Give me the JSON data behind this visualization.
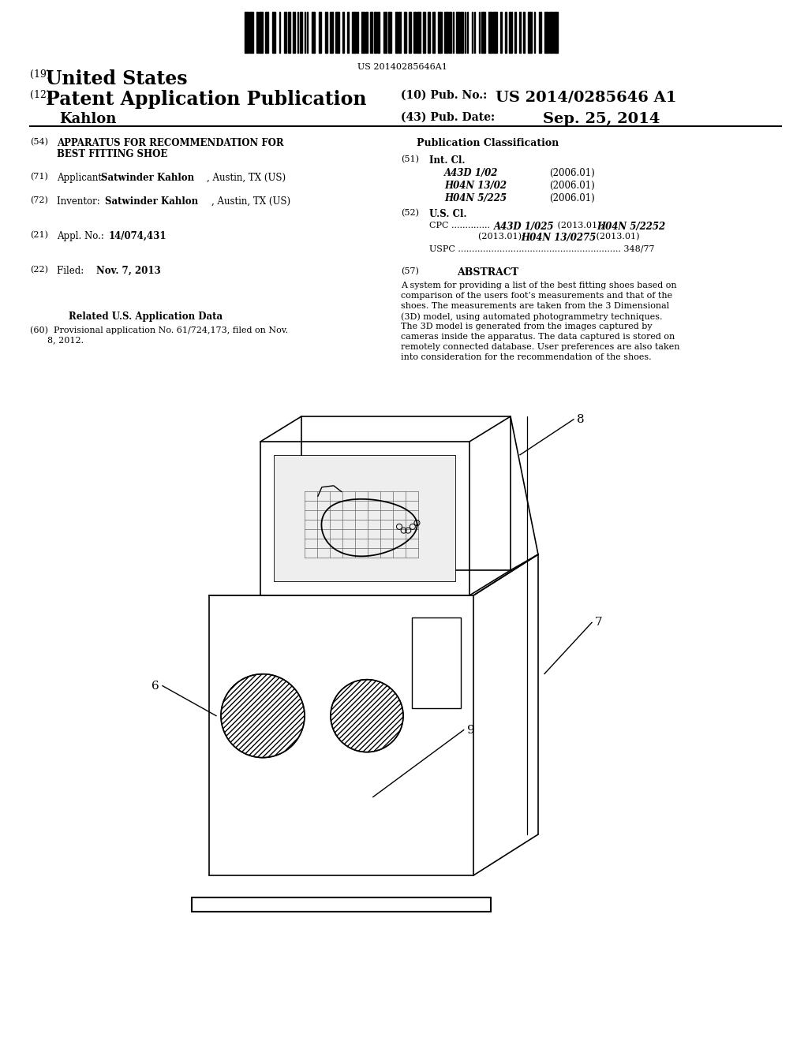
{
  "background_color": "#ffffff",
  "barcode_text": "US 20140285646A1",
  "header": {
    "country_num": "(19)",
    "country": "United States",
    "type_num": "(12)",
    "type": "Patent Application Publication",
    "pub_num_label": "(10) Pub. No.:",
    "pub_num": "US 2014/0285646 A1",
    "inventor_label": "Kahlon",
    "date_num_label": "(43) Pub. Date:",
    "date": "Sep. 25, 2014"
  },
  "right_col": {
    "pub_class_title": "Publication Classification",
    "int_cl_items": [
      {
        "code": "A43D 1/02",
        "date": "(2006.01)"
      },
      {
        "code": "H04N 13/02",
        "date": "(2006.01)"
      },
      {
        "code": "H04N 5/225",
        "date": "(2006.01)"
      }
    ],
    "abstract_lines": [
      "A system for providing a list of the best fitting shoes based on",
      "comparison of the users foot’s measurements and that of the",
      "shoes. The measurements are taken from the 3 Dimensional",
      "(3D) model, using automated photogrammetry techniques.",
      "The 3D model is generated from the images captured by",
      "cameras inside the apparatus. The data captured is stored on",
      "remotely connected database. User preferences are also taken",
      "into consideration for the recommendation of the shoes."
    ]
  },
  "diagram": {
    "label_6": "6",
    "label_7": "7",
    "label_8": "8",
    "label_9": "9"
  }
}
